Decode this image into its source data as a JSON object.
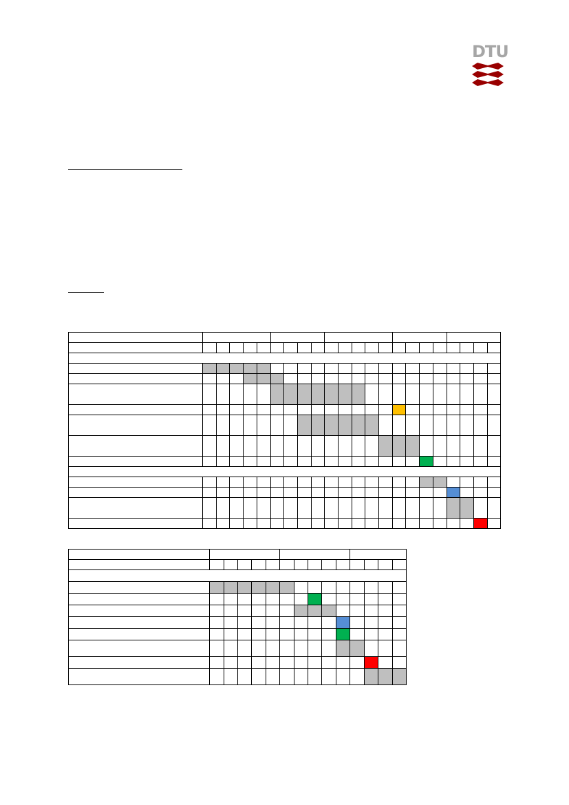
{
  "logo": {
    "text": "DTU",
    "color": "#a6a6a6",
    "mark_color": "#990000"
  },
  "colors": {
    "activity": "#bfbfbf",
    "milestone_orange": "#ffc000",
    "milestone_green": "#00b050",
    "milestone_blue": "#558ed5",
    "milestone_red": "#ff0000"
  },
  "table1": {
    "group_spans": [
      5,
      4,
      5,
      4,
      4
    ],
    "weeks": 22,
    "rows": [
      {
        "type": "section"
      },
      {
        "cells": {
          "0": "g",
          "1": "g",
          "2": "g",
          "3": "g",
          "4": "g"
        }
      },
      {
        "cells": {
          "3": "g",
          "4": "g",
          "5": "g"
        }
      },
      {
        "tall": true,
        "cells": {
          "5": "g",
          "6": "g",
          "7": "g",
          "8": "g",
          "9": "g",
          "10": "g",
          "11": "g"
        }
      },
      {
        "cells": {
          "14": "o"
        }
      },
      {
        "tall": true,
        "cells": {
          "7": "g",
          "8": "g",
          "9": "g",
          "10": "g",
          "11": "g",
          "12": "g"
        }
      },
      {
        "tall": true,
        "cells": {
          "13": "g",
          "14": "g",
          "15": "g"
        }
      },
      {
        "cells": {
          "16": "gr"
        }
      },
      {
        "type": "section"
      },
      {
        "cells": {
          "16": "g",
          "17": "g"
        }
      },
      {
        "cells": {
          "18": "b"
        }
      },
      {
        "tall": true,
        "cells": {
          "18": "g",
          "19": "g"
        }
      },
      {
        "cells": {
          "20": "r"
        }
      }
    ]
  },
  "table2": {
    "group_spans": [
      5,
      5,
      4
    ],
    "weeks": 14,
    "rows": [
      {
        "type": "section"
      },
      {
        "cells": {
          "0": "g",
          "1": "g",
          "2": "g",
          "3": "g",
          "4": "g",
          "5": "g"
        }
      },
      {
        "cells": {
          "7": "gr"
        }
      },
      {
        "cells": {
          "6": "g",
          "7": "g",
          "8": "g"
        }
      },
      {
        "cells": {
          "9": "b"
        }
      },
      {
        "cells": {
          "9": "gr"
        }
      },
      {
        "tall": true,
        "cells": {
          "9": "g",
          "10": "g"
        }
      },
      {
        "cells": {
          "11": "r"
        }
      },
      {
        "tall": true,
        "cells": {
          "11": "g",
          "12": "g",
          "13": "g"
        }
      }
    ]
  }
}
